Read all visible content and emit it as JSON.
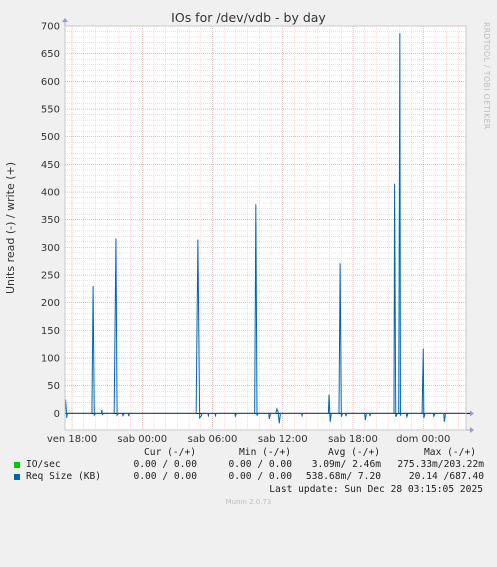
{
  "chart_data": {
    "type": "line",
    "title": "IOs for /dev/vdb - by day",
    "ylabel": "Units read (-) / write (+)",
    "ylim": [
      -30,
      700
    ],
    "y_ticks": [
      0,
      50,
      100,
      150,
      200,
      250,
      300,
      350,
      400,
      450,
      500,
      550,
      600,
      650,
      700
    ],
    "xlim": [
      -0.6,
      33.65
    ],
    "x_ticks": [
      {
        "label": "ven 18:00",
        "value": 0
      },
      {
        "label": "sab 00:00",
        "value": 6
      },
      {
        "label": "sab 06:00",
        "value": 12
      },
      {
        "label": "sab 12:00",
        "value": 18
      },
      {
        "label": "sab 18:00",
        "value": 24
      },
      {
        "label": "dom 00:00",
        "value": 30
      }
    ],
    "series": [
      {
        "name": "IO/sec",
        "color": "#00cc00",
        "points": []
      },
      {
        "name": "Req Size (KB)",
        "color": "#0066b3",
        "points": [
          [
            -0.6,
            0
          ],
          [
            -0.55,
            25
          ],
          [
            -0.5,
            10
          ],
          [
            -0.45,
            -8
          ],
          [
            -0.4,
            0
          ],
          [
            1.7,
            0
          ],
          [
            1.8,
            230
          ],
          [
            1.9,
            -3
          ],
          [
            2.0,
            0
          ],
          [
            2.5,
            0
          ],
          [
            2.55,
            6
          ],
          [
            2.6,
            -3
          ],
          [
            2.65,
            0
          ],
          [
            3.6,
            0
          ],
          [
            3.75,
            316
          ],
          [
            3.85,
            -3
          ],
          [
            3.95,
            0
          ],
          [
            4.3,
            0
          ],
          [
            4.35,
            -4
          ],
          [
            4.45,
            0
          ],
          [
            4.8,
            0
          ],
          [
            4.85,
            -5
          ],
          [
            4.9,
            0
          ],
          [
            10.6,
            0
          ],
          [
            10.75,
            314
          ],
          [
            10.9,
            -8
          ],
          [
            11.05,
            -4
          ],
          [
            11.1,
            0
          ],
          [
            11.6,
            0
          ],
          [
            11.65,
            -4
          ],
          [
            11.7,
            0
          ],
          [
            12.2,
            0
          ],
          [
            12.25,
            -4
          ],
          [
            12.3,
            0
          ],
          [
            13.9,
            0
          ],
          [
            13.95,
            -5
          ],
          [
            14.05,
            0
          ],
          [
            15.6,
            0
          ],
          [
            15.7,
            378
          ],
          [
            15.8,
            -4
          ],
          [
            15.9,
            0
          ],
          [
            16.8,
            0
          ],
          [
            16.85,
            -10
          ],
          [
            16.95,
            0
          ],
          [
            17.4,
            0
          ],
          [
            17.5,
            8
          ],
          [
            17.6,
            3
          ],
          [
            17.7,
            -18
          ],
          [
            17.8,
            0
          ],
          [
            19.6,
            0
          ],
          [
            19.65,
            -4
          ],
          [
            19.7,
            0
          ],
          [
            21.9,
            0
          ],
          [
            21.95,
            34
          ],
          [
            22.05,
            -15
          ],
          [
            22.15,
            0
          ],
          [
            22.8,
            0
          ],
          [
            22.9,
            271
          ],
          [
            23.0,
            -6
          ],
          [
            23.1,
            0
          ],
          [
            23.35,
            0
          ],
          [
            23.4,
            -5
          ],
          [
            23.45,
            0
          ],
          [
            25.0,
            0
          ],
          [
            25.05,
            -12
          ],
          [
            25.15,
            0
          ],
          [
            25.4,
            0
          ],
          [
            25.45,
            -5
          ],
          [
            25.5,
            0
          ],
          [
            27.5,
            0
          ],
          [
            27.55,
            415
          ],
          [
            27.65,
            -6
          ],
          [
            27.8,
            0
          ],
          [
            27.9,
            0
          ],
          [
            28.0,
            687
          ],
          [
            28.05,
            -4
          ],
          [
            28.1,
            0
          ],
          [
            28.55,
            0
          ],
          [
            28.6,
            -6
          ],
          [
            28.7,
            0
          ],
          [
            29.9,
            0
          ],
          [
            30.0,
            117
          ],
          [
            30.05,
            -8
          ],
          [
            30.15,
            0
          ],
          [
            30.85,
            0
          ],
          [
            30.9,
            -5
          ],
          [
            31.0,
            0
          ],
          [
            31.75,
            0
          ],
          [
            31.8,
            -15
          ],
          [
            31.9,
            0
          ],
          [
            33.65,
            0
          ]
        ]
      }
    ]
  },
  "side_text": "RRDTOOL / TOBI OETIKER",
  "legend": {
    "headers": [
      "Cur (-/+)",
      "Min (-/+)",
      "Avg (-/+)",
      "Max (-/+)"
    ],
    "rows": [
      {
        "name": "IO/sec",
        "color": "#00cc00",
        "cur": "0.00 / 0.00",
        "min": "0.00 / 0.00",
        "avg": "3.09m/ 2.46m",
        "max": "275.33m/203.22m"
      },
      {
        "name": "Req Size (KB)",
        "color": "#0066b3",
        "cur": "0.00 / 0.00",
        "min": "0.00 / 0.00",
        "avg": "538.68m/ 7.20",
        "max": "20.14 /687.40"
      }
    ]
  },
  "footer": {
    "last_update": "Last update: Sun Dec 28 03:15:05 2025",
    "munin": "Munin 2.0.73"
  }
}
